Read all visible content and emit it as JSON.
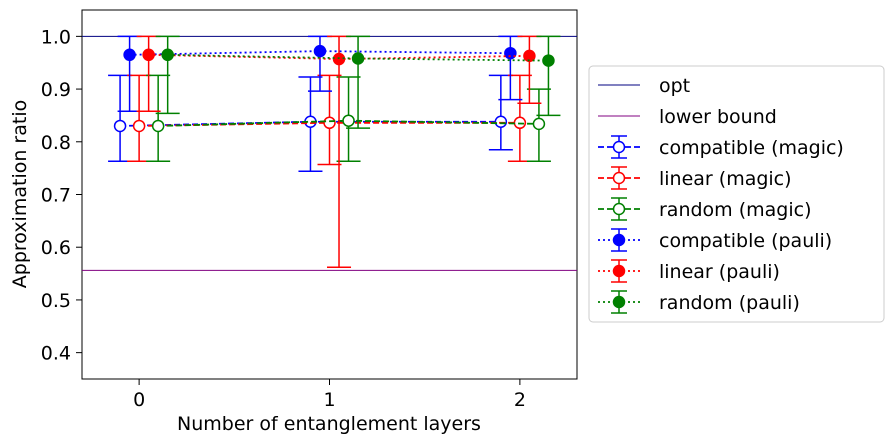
{
  "chart_data": {
    "type": "scatter",
    "xlabel": "Number of entanglement layers",
    "ylabel": "Approximation ratio",
    "xlim": [
      -0.3,
      2.3
    ],
    "ylim": [
      0.35,
      1.05
    ],
    "xticks": [
      0,
      1,
      2
    ],
    "yticks": [
      0.4,
      0.5,
      0.6,
      0.7,
      0.8,
      0.9,
      1.0
    ],
    "xtick_labels": [
      "0",
      "1",
      "2"
    ],
    "ytick_labels": [
      "0.4",
      "0.5",
      "0.6",
      "0.7",
      "0.8",
      "0.9",
      "1.0"
    ],
    "grid": false,
    "legend_position": "outside right",
    "hlines": [
      {
        "name": "opt",
        "y": 1.0,
        "color": "#000080"
      },
      {
        "name": "lower bound",
        "y": 0.556,
        "color": "#800080"
      }
    ],
    "series": [
      {
        "name": "compatible (magic)",
        "color": "#0000ff",
        "marker": "open-circle",
        "linestyle": "dashed",
        "x": [
          -0.1,
          0.9,
          1.9
        ],
        "y": [
          0.83,
          0.838,
          0.838
        ],
        "err_low": [
          0.763,
          0.744,
          0.785
        ],
        "err_high": [
          0.926,
          0.923,
          0.926
        ]
      },
      {
        "name": "linear (magic)",
        "color": "#ff0000",
        "marker": "open-circle",
        "linestyle": "dashed",
        "x": [
          -0.0,
          1.0,
          2.0
        ],
        "y": [
          0.83,
          0.836,
          0.836
        ],
        "err_low": [
          0.763,
          0.757,
          0.763
        ],
        "err_high": [
          0.926,
          0.926,
          0.926
        ]
      },
      {
        "name": "random (magic)",
        "color": "#008000",
        "marker": "open-circle",
        "linestyle": "dashed",
        "x": [
          0.1,
          1.1,
          2.1
        ],
        "y": [
          0.83,
          0.84,
          0.834
        ],
        "err_low": [
          0.763,
          0.763,
          0.763
        ],
        "err_high": [
          0.926,
          0.923,
          0.9
        ]
      },
      {
        "name": "compatible (pauli)",
        "color": "#0000ff",
        "marker": "filled-circle",
        "linestyle": "dotted",
        "x": [
          -0.05,
          0.95,
          1.95
        ],
        "y": [
          0.965,
          0.972,
          0.968
        ],
        "err_low": [
          0.858,
          0.896,
          0.88
        ],
        "err_high": [
          1.0,
          1.0,
          1.0
        ]
      },
      {
        "name": "linear (pauli)",
        "color": "#ff0000",
        "marker": "filled-circle",
        "linestyle": "dotted",
        "x": [
          0.05,
          1.05,
          2.05
        ],
        "y": [
          0.965,
          0.957,
          0.963
        ],
        "err_low": [
          0.858,
          0.562,
          0.873
        ],
        "err_high": [
          1.0,
          1.0,
          1.0
        ]
      },
      {
        "name": "random (pauli)",
        "color": "#008000",
        "marker": "filled-circle",
        "linestyle": "dotted",
        "x": [
          0.15,
          1.15,
          2.15
        ],
        "y": [
          0.965,
          0.958,
          0.954
        ],
        "err_low": [
          0.854,
          0.826,
          0.85
        ],
        "err_high": [
          1.0,
          1.0,
          1.0
        ]
      }
    ]
  }
}
